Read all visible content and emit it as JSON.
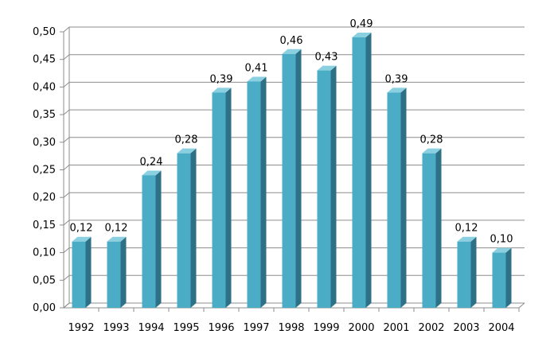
{
  "chart_data": {
    "type": "bar",
    "title": "",
    "xlabel": "",
    "ylabel": "",
    "categories": [
      "1992",
      "1993",
      "1994",
      "1995",
      "1996",
      "1997",
      "1998",
      "1999",
      "2000",
      "2001",
      "2002",
      "2003",
      "2004"
    ],
    "values": [
      0.12,
      0.12,
      0.24,
      0.28,
      0.39,
      0.41,
      0.46,
      0.43,
      0.49,
      0.39,
      0.28,
      0.12,
      0.1
    ],
    "data_labels": [
      "0,12",
      "0,12",
      "0,24",
      "0,28",
      "0,39",
      "0,41",
      "0,46",
      "0,43",
      "0,49",
      "0,39",
      "0,28",
      "0,12",
      "0,10"
    ],
    "y_ticks": [
      "0,00",
      "0,05",
      "0,10",
      "0,15",
      "0,20",
      "0,25",
      "0,30",
      "0,35",
      "0,40",
      "0,45",
      "0,50"
    ],
    "ylim": [
      0,
      0.5
    ],
    "grid": true,
    "legend": "none",
    "style": "3d-bar",
    "colors": {
      "bar_front": "#4BACC6",
      "bar_side": "#2E7187",
      "bar_top": "#8BD0E0",
      "grid": "#8C8C8C",
      "axis": "#8C8C8C",
      "wall": "#FFFFFF"
    }
  }
}
